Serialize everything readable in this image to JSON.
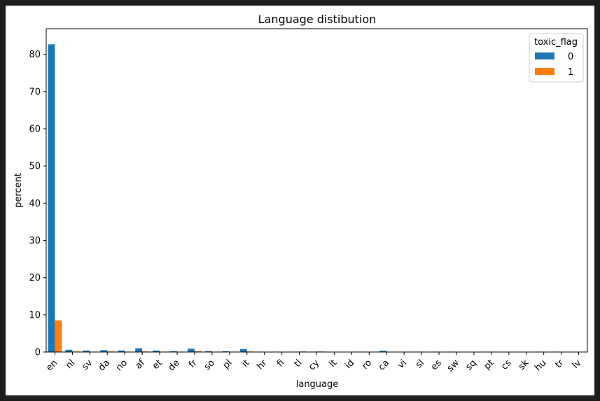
{
  "chart_data": {
    "type": "bar",
    "title": "Language distibution",
    "xlabel": "language",
    "ylabel": "percent",
    "ylim": [
      0,
      86.9
    ],
    "yticks": [
      0,
      10,
      20,
      30,
      40,
      50,
      60,
      70,
      80
    ],
    "grid": false,
    "legend": {
      "title": "toxic_flag",
      "placement": "top-right"
    },
    "categories": [
      "en",
      "nl",
      "sv",
      "da",
      "no",
      "af",
      "et",
      "de",
      "fr",
      "so",
      "pl",
      "it",
      "hr",
      "fi",
      "tl",
      "cy",
      "lt",
      "id",
      "ro",
      "ca",
      "vi",
      "sl",
      "es",
      "sw",
      "sq",
      "pt",
      "cs",
      "sk",
      "hu",
      "tr",
      "lv"
    ],
    "series": [
      {
        "name": "0",
        "color": "#1f77b4",
        "values": [
          82.7,
          0.6,
          0.4,
          0.5,
          0.4,
          1.0,
          0.4,
          0.2,
          0.9,
          0.2,
          0.2,
          0.8,
          0.1,
          0.1,
          0.1,
          0.1,
          0.05,
          0.05,
          0.1,
          0.35,
          0.05,
          0.1,
          0.1,
          0.1,
          0.05,
          0.1,
          0.05,
          0.05,
          0.1,
          0.1,
          0.05
        ]
      },
      {
        "name": "1",
        "color": "#ff7f0e",
        "values": [
          8.5,
          0.15,
          0.1,
          0.15,
          0.1,
          0.15,
          0.1,
          0.05,
          0.2,
          0.1,
          0.05,
          0.15,
          0.05,
          0.05,
          0.15,
          0.15,
          0.02,
          0.1,
          0.05,
          0.05,
          0.02,
          0.02,
          0.02,
          0.02,
          0.02,
          0.02,
          0.02,
          0.02,
          0.02,
          0.02,
          0.02
        ]
      }
    ]
  }
}
